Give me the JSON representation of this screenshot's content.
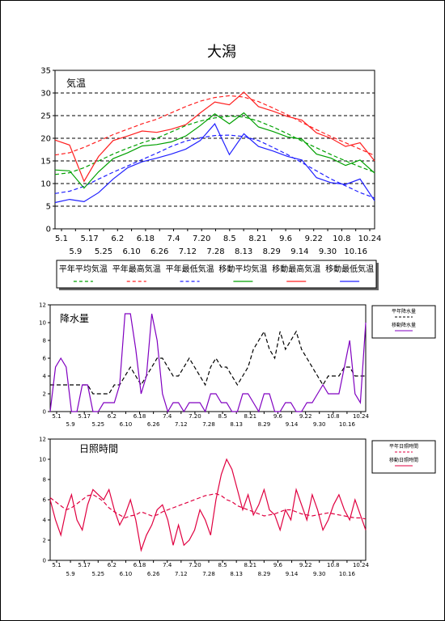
{
  "page_title": "大潟",
  "chart_data": [
    {
      "type": "line",
      "panel_label": "気温",
      "ylim": [
        0,
        35
      ],
      "yticks": [
        "0",
        "5",
        "10",
        "15",
        "20",
        "25",
        "30",
        "35"
      ],
      "xticks_top": [
        "5.1",
        "5.17",
        "6.2",
        "6.18",
        "7.4",
        "7.20",
        "8.5",
        "8.21",
        "9.6",
        "9.22",
        "10.8",
        "10.24"
      ],
      "xticks_bottom": [
        "5.9",
        "5.25",
        "6.10",
        "6.26",
        "7.12",
        "7.28",
        "8.13",
        "8.29",
        "9.14",
        "9.30",
        "10.16"
      ],
      "x": [
        0,
        8,
        16,
        24,
        32,
        40,
        48,
        56,
        64,
        72,
        80,
        88,
        96,
        104,
        112,
        120,
        128,
        136,
        144,
        152,
        160,
        168,
        176
      ],
      "series": [
        {
          "name": "平年平均気温",
          "color": "#00a000",
          "dash": true,
          "values": [
            12.0,
            12.4,
            13.5,
            15.0,
            16.5,
            17.8,
            19.0,
            20.0,
            21.4,
            22.8,
            23.8,
            24.5,
            24.9,
            24.7,
            23.8,
            22.5,
            21.0,
            19.4,
            17.9,
            16.4,
            15.0,
            13.7,
            12.5
          ]
        },
        {
          "name": "平年最高気温",
          "color": "#ff2020",
          "dash": true,
          "values": [
            16.3,
            16.8,
            18.0,
            19.4,
            20.8,
            22.0,
            23.2,
            24.2,
            25.6,
            27.0,
            28.2,
            29.0,
            29.4,
            29.1,
            28.1,
            26.7,
            25.2,
            23.5,
            21.9,
            20.4,
            19.0,
            17.6,
            16.2
          ]
        },
        {
          "name": "平年最低気温",
          "color": "#2020ff",
          "dash": true,
          "values": [
            7.8,
            8.3,
            9.4,
            11.0,
            12.5,
            13.9,
            15.3,
            16.7,
            18.2,
            19.4,
            20.1,
            20.6,
            20.7,
            20.4,
            19.5,
            18.0,
            16.4,
            14.6,
            12.8,
            11.0,
            9.5,
            8.0,
            6.8
          ]
        },
        {
          "name": "移動平均気温",
          "color": "#00a000",
          "dash": false,
          "values": [
            13.0,
            12.8,
            9.0,
            12.6,
            15.5,
            16.8,
            18.3,
            18.6,
            19.2,
            20.5,
            22.8,
            25.4,
            23.2,
            25.6,
            22.5,
            21.5,
            20.3,
            19.8,
            16.5,
            15.6,
            14.0,
            15.2,
            12.3
          ]
        },
        {
          "name": "移動最高気温",
          "color": "#ff2020",
          "dash": false,
          "values": [
            19.6,
            18.5,
            10.5,
            16.0,
            19.5,
            20.5,
            21.6,
            21.3,
            22.0,
            23.0,
            25.6,
            28.0,
            27.4,
            30.2,
            27.0,
            26.0,
            24.8,
            24.0,
            21.2,
            20.0,
            18.2,
            19.0,
            15.0
          ]
        },
        {
          "name": "移動最低気温",
          "color": "#2020ff",
          "dash": false,
          "values": [
            5.8,
            6.5,
            6.0,
            8.0,
            11.0,
            13.5,
            14.8,
            15.6,
            16.5,
            17.6,
            19.5,
            23.2,
            16.4,
            21.0,
            18.2,
            17.2,
            16.0,
            15.2,
            11.3,
            10.2,
            9.8,
            11.0,
            6.2
          ]
        }
      ]
    },
    {
      "type": "line",
      "panel_label": "降水量",
      "ylim": [
        0,
        12
      ],
      "yticks": [
        "0",
        "2",
        "4",
        "6",
        "8",
        "10",
        "12"
      ],
      "xticks_top": [
        "5.1",
        "5.17",
        "6.2",
        "6.18",
        "7.4",
        "7.20",
        "8.5",
        "8.21",
        "9.6",
        "9.22",
        "10.8",
        "10.24"
      ],
      "xticks_bottom": [
        "5.9",
        "5.25",
        "6.10",
        "6.26",
        "7.12",
        "7.28",
        "8.13",
        "8.29",
        "9.14",
        "9.30",
        "10.16"
      ],
      "x": [
        0,
        3,
        6,
        9,
        12,
        15,
        18,
        21,
        24,
        27,
        30,
        33,
        36,
        39,
        42,
        45,
        48,
        51,
        54,
        57,
        60,
        63,
        66,
        69,
        72,
        75,
        78,
        81,
        84,
        87,
        90,
        93,
        96,
        99,
        102,
        105,
        108,
        111,
        114,
        117,
        120,
        123,
        126,
        129,
        132,
        135,
        138,
        141,
        144,
        147,
        150,
        153,
        156,
        159,
        162,
        165,
        168,
        171,
        174,
        177
      ],
      "series": [
        {
          "name": "平年降水量",
          "color": "#000000",
          "dash": true,
          "values": [
            3,
            3,
            3,
            3,
            3,
            3,
            3,
            3,
            2,
            2,
            2,
            2,
            3,
            3,
            4,
            5,
            4,
            3,
            4,
            5,
            6,
            6,
            5,
            4,
            4,
            5,
            6,
            5,
            4,
            3,
            5,
            6,
            5,
            5,
            4,
            3,
            4,
            5,
            7,
            8,
            9,
            7,
            6,
            9,
            7,
            8,
            9,
            7,
            6,
            5,
            4,
            3,
            4,
            4,
            4,
            5,
            5,
            4,
            4,
            4
          ]
        },
        {
          "name": "移動降水量",
          "color": "#8000c0",
          "dash": false,
          "values": [
            0,
            5,
            6,
            5,
            0,
            0,
            3,
            3,
            0,
            0,
            1,
            1,
            1,
            3,
            11,
            11,
            7,
            2,
            4,
            11,
            8,
            2,
            0,
            1,
            1,
            0,
            1,
            1,
            1,
            0,
            2,
            2,
            1,
            1,
            0,
            0,
            2,
            2,
            1,
            0,
            2,
            2,
            0,
            0,
            1,
            1,
            0,
            0,
            1,
            1,
            2,
            3,
            2,
            2,
            2,
            5,
            8,
            2,
            1,
            10
          ]
        }
      ]
    },
    {
      "type": "line",
      "panel_label": "日照時間",
      "ylim": [
        0,
        12
      ],
      "yticks": [
        "0",
        "2",
        "4",
        "6",
        "8",
        "10",
        "12"
      ],
      "xticks_top": [
        "5.1",
        "5.17",
        "6.2",
        "6.18",
        "7.4",
        "7.20",
        "8.5",
        "8.21",
        "9.6",
        "9.22",
        "10.8",
        "10.24"
      ],
      "xticks_bottom": [
        "5.9",
        "5.25",
        "6.10",
        "6.26",
        "7.12",
        "7.28",
        "8.13",
        "8.29",
        "9.14",
        "9.30",
        "10.16"
      ],
      "x": [
        0,
        3,
        6,
        9,
        12,
        15,
        18,
        21,
        24,
        27,
        30,
        33,
        36,
        39,
        42,
        45,
        48,
        51,
        54,
        57,
        60,
        63,
        66,
        69,
        72,
        75,
        78,
        81,
        84,
        87,
        90,
        93,
        96,
        99,
        102,
        105,
        108,
        111,
        114,
        117,
        120,
        123,
        126,
        129,
        132,
        135,
        138,
        141,
        144,
        147,
        150,
        153,
        156,
        159,
        162,
        165,
        168,
        171,
        174,
        177
      ],
      "series": [
        {
          "name": "平年日照時間",
          "color": "#e00040",
          "dash": true,
          "values": [
            6.2,
            5.8,
            5.4,
            5.0,
            5.2,
            5.6,
            6.0,
            6.4,
            6.5,
            6.2,
            5.8,
            5.2,
            4.8,
            4.5,
            4.2,
            4.4,
            4.5,
            4.8,
            4.6,
            4.4,
            4.5,
            4.8,
            5.0,
            5.2,
            5.4,
            5.6,
            5.8,
            6.0,
            6.2,
            6.4,
            6.5,
            6.6,
            6.4,
            6.0,
            5.8,
            5.4,
            5.2,
            5.0,
            4.8,
            4.6,
            4.4,
            4.5,
            4.6,
            4.8,
            5.0,
            5.0,
            4.8,
            4.6,
            4.5,
            4.4,
            4.5,
            4.6,
            4.7,
            4.6,
            4.5,
            4.4,
            4.3,
            4.2,
            4.2,
            4.1
          ]
        },
        {
          "name": "移動日照時間",
          "color": "#e00040",
          "dash": false,
          "values": [
            6.0,
            4.0,
            2.5,
            5.0,
            6.5,
            4.0,
            3.0,
            5.5,
            7.0,
            6.5,
            6.0,
            7.0,
            5.0,
            3.5,
            4.5,
            6.0,
            4.0,
            1.0,
            2.5,
            3.5,
            5.0,
            5.5,
            4.0,
            1.5,
            3.5,
            1.5,
            2.0,
            3.0,
            5.0,
            4.0,
            2.5,
            6.0,
            8.5,
            10.0,
            9.0,
            7.0,
            5.0,
            6.5,
            4.5,
            5.5,
            7.0,
            5.0,
            4.5,
            3.0,
            5.0,
            4.0,
            7.0,
            5.5,
            4.0,
            6.5,
            5.0,
            3.0,
            4.0,
            5.5,
            6.5,
            5.0,
            4.0,
            6.0,
            4.5,
            3.0
          ]
        }
      ]
    }
  ]
}
